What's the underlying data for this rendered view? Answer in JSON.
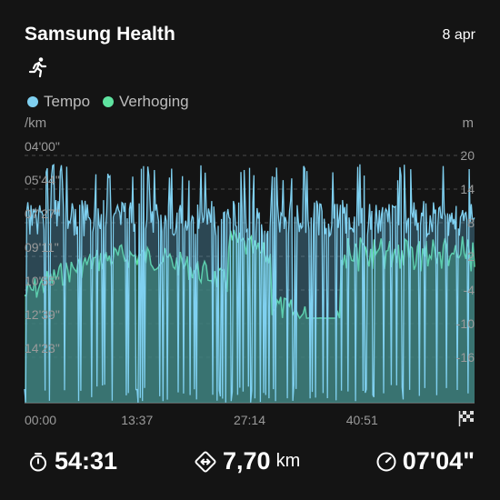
{
  "header": {
    "app_title": "Samsung Health",
    "date": "8 apr"
  },
  "activity_icon": "running-person-icon",
  "legend": [
    {
      "label": "Tempo",
      "color": "#7fd0f0"
    },
    {
      "label": "Verhoging",
      "color": "#5fe3a0"
    }
  ],
  "axes": {
    "left_unit": "/km",
    "right_unit": "m"
  },
  "chart_data": {
    "type": "area",
    "x_tick_labels": [
      "00:00",
      "13:37",
      "27:14",
      "40:51"
    ],
    "x_end_icon": "finish-flag-icon",
    "y_left_tick_labels": [
      "04'00\"",
      "05'44\"",
      "07'27\"",
      "09'11\"",
      "10'55\"",
      "12'39\"",
      "14'23\""
    ],
    "y_right_tick_labels": [
      "20",
      "14",
      "8",
      "2",
      "-4",
      "-10",
      "-16"
    ],
    "grid": true,
    "series": [
      {
        "name": "Tempo",
        "color": "#7fd0f0",
        "y_axis": "left"
      },
      {
        "name": "Verhoging",
        "color": "#5fe3a0",
        "y_axis": "right"
      }
    ]
  },
  "stats": {
    "duration": {
      "icon": "stopwatch-icon",
      "value": "54:31"
    },
    "distance": {
      "icon": "distance-icon",
      "value": "7,70",
      "unit": "km"
    },
    "pace": {
      "icon": "pace-gauge-icon",
      "value": "07'04\""
    }
  }
}
